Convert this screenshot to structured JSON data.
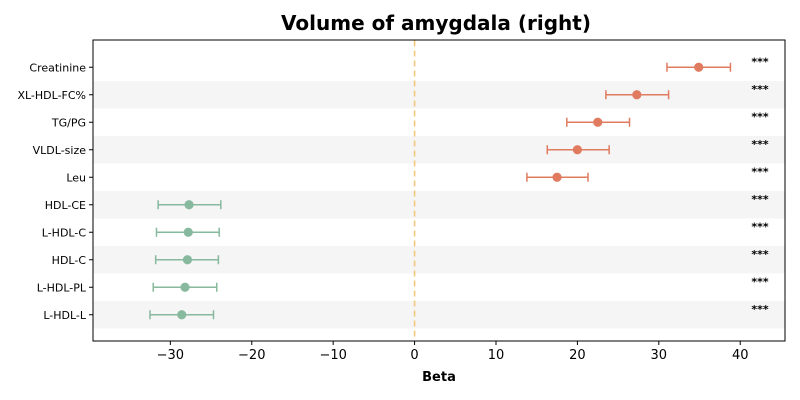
{
  "chart_data": {
    "type": "forest",
    "title": "Volume of amygdala (right)",
    "xlabel": "Beta",
    "xlim": [
      -39.5,
      45.5
    ],
    "x_ticks": [
      -30,
      -20,
      -10,
      0,
      10,
      20,
      30,
      40
    ],
    "x_tick_labels": [
      "−30",
      "−20",
      "−10",
      "0",
      "10",
      "20",
      "30",
      "40"
    ],
    "reference_line": 0,
    "positive_color": "#e07b5f",
    "negative_color": "#87b99e",
    "reference_color": "#f5c77e",
    "stripe_color": "#f5f5f5",
    "rows": [
      {
        "label": "Creatinine",
        "beta": 34.9,
        "lo": 31.0,
        "hi": 38.8,
        "sig": "***"
      },
      {
        "label": "XL-HDL-FC%",
        "beta": 27.3,
        "lo": 23.5,
        "hi": 31.2,
        "sig": "***"
      },
      {
        "label": "TG/PG",
        "beta": 22.5,
        "lo": 18.7,
        "hi": 26.4,
        "sig": "***"
      },
      {
        "label": "VLDL-size",
        "beta": 20.0,
        "lo": 16.3,
        "hi": 23.9,
        "sig": "***"
      },
      {
        "label": "Leu",
        "beta": 17.5,
        "lo": 13.8,
        "hi": 21.3,
        "sig": "***"
      },
      {
        "label": "HDL-CE",
        "beta": -27.7,
        "lo": -31.5,
        "hi": -23.8,
        "sig": "***"
      },
      {
        "label": "L-HDL-C",
        "beta": -27.8,
        "lo": -31.7,
        "hi": -24.0,
        "sig": "***"
      },
      {
        "label": "HDL-C",
        "beta": -27.9,
        "lo": -31.8,
        "hi": -24.1,
        "sig": "***"
      },
      {
        "label": "L-HDL-PL",
        "beta": -28.2,
        "lo": -32.1,
        "hi": -24.3,
        "sig": "***"
      },
      {
        "label": "L-HDL-L",
        "beta": -28.6,
        "lo": -32.5,
        "hi": -24.7,
        "sig": "***"
      }
    ]
  }
}
